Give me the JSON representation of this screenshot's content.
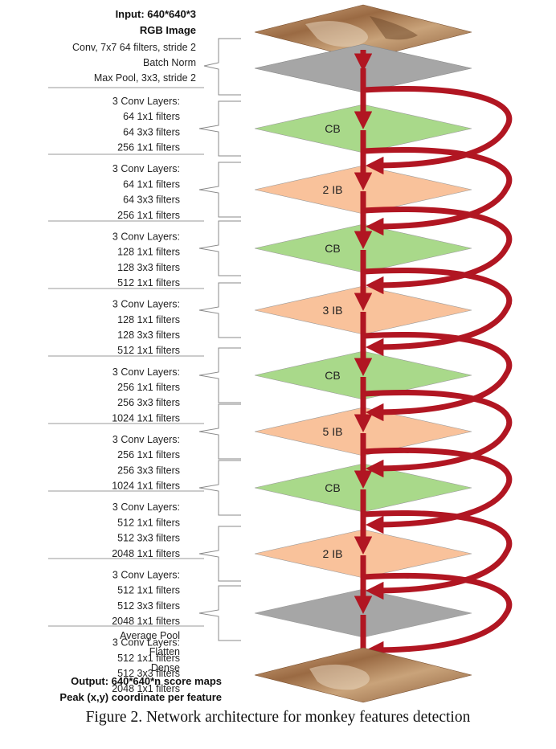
{
  "header": {
    "input_line1": "Input: 640*640*3",
    "input_line2": "RGB Image"
  },
  "stem": [
    "Conv, 7x7 64 filters, stride 2",
    "Batch Norm",
    "Max Pool, 3x3, stride 2"
  ],
  "stages": [
    {
      "lines": [
        "3 Conv Layers:",
        "64 1x1 filters",
        "64 3x3 filters",
        "256 1x1 filters"
      ],
      "block": "CB",
      "kind": "cb"
    },
    {
      "lines": [
        "3 Conv Layers:",
        "64 1x1 filters",
        "64 3x3 filters",
        "256 1x1 filters"
      ],
      "block": "2 IB",
      "kind": "ib"
    },
    {
      "lines": [
        "3 Conv Layers:",
        "128 1x1 filters",
        "128 3x3 filters",
        "512 1x1 filters"
      ],
      "block": "CB",
      "kind": "cb"
    },
    {
      "lines": [
        "3 Conv Layers:",
        "128 1x1 filters",
        "128 3x3 filters",
        "512 1x1 filters"
      ],
      "block": "3 IB",
      "kind": "ib"
    },
    {
      "lines": [
        "3 Conv Layers:",
        "256 1x1 filters",
        "256 3x3 filters",
        "1024 1x1 filters"
      ],
      "block": "CB",
      "kind": "cb"
    },
    {
      "lines": [
        "3 Conv Layers:",
        "256 1x1 filters",
        "256 3x3 filters",
        "1024 1x1 filters"
      ],
      "block": "5 IB",
      "kind": "ib"
    },
    {
      "lines": [
        "3 Conv Layers:",
        "512 1x1 filters",
        "512 3x3 filters",
        "2048 1x1 filters"
      ],
      "block": "CB",
      "kind": "cb"
    },
    {
      "lines": [
        "3 Conv Layers:",
        "512 1x1 filters",
        "512 3x3 filters",
        "2048 1x1 filters"
      ],
      "block": "2 IB",
      "kind": "ib"
    },
    {
      "lines": [
        "3 Conv Layers:",
        "512 1x1 filters",
        "512 3x3 filters",
        "2048 1x1 filters"
      ],
      "block": "",
      "kind": "pool"
    }
  ],
  "head": [
    "Average Pool",
    "Flatten",
    "Dense"
  ],
  "footer": {
    "output_line1": "Output: 640*640*n score maps",
    "output_line2": "Peak (x,y) coordinate per feature"
  },
  "caption": "Figure 2. Network architecture for monkey features detection",
  "colors": {
    "cb": "#a9d98a",
    "ib": "#f9c29b",
    "pool": "#a6a6a6",
    "arrow": "#b11622",
    "image_base": "#b8875b"
  }
}
